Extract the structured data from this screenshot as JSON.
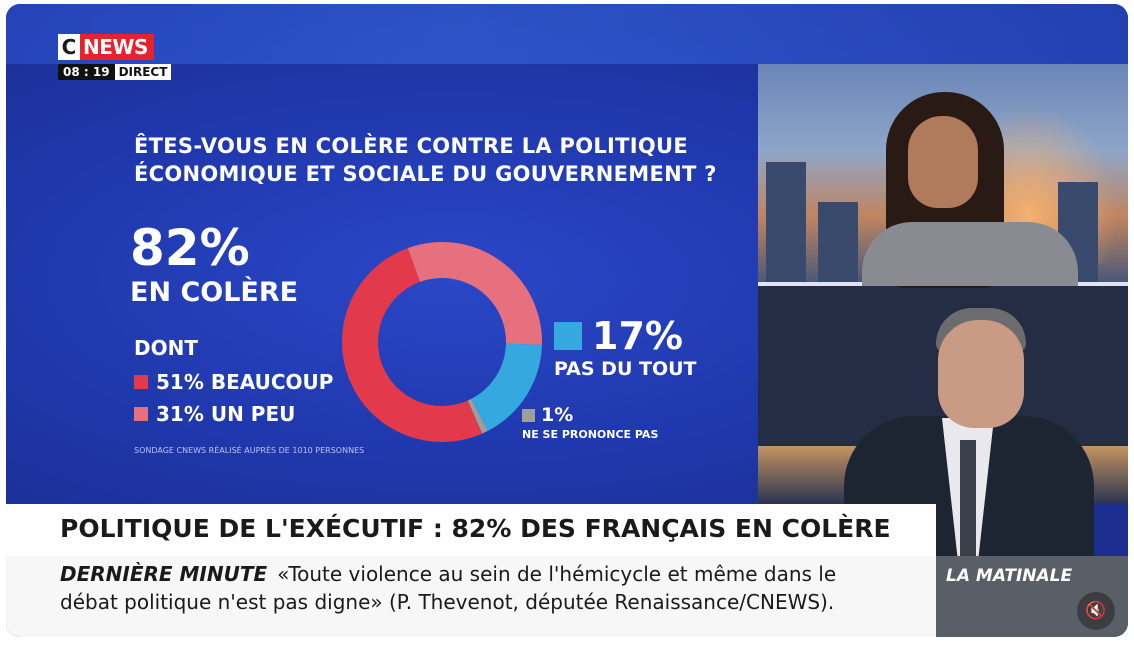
{
  "logo": {
    "c": "C",
    "news": "NEWS"
  },
  "live": {
    "time": "08 : 19",
    "direct": "DIRECT"
  },
  "poll": {
    "question_line1": "ÊTES-VOUS EN COLÈRE CONTRE LA POLITIQUE",
    "question_line2": "ÉCONOMIQUE ET SOCIALE DU GOUVERNEMENT ?",
    "headline_pct": "82%",
    "headline_label": "EN COLÈRE",
    "dont_label": "DONT",
    "source": "SONDAGE CNEWS RÉALISÉ AUPRÈS DE 1010 PERSONNES",
    "slices": [
      {
        "pct_label": "51%",
        "label": "BEAUCOUP",
        "value": 51,
        "color": "#e23a4b"
      },
      {
        "pct_label": "31%",
        "label": "UN PEU",
        "value": 31,
        "color": "#e6707e"
      },
      {
        "pct_label": "17%",
        "label": "PAS DU TOUT",
        "value": 17,
        "color": "#35a8e0"
      },
      {
        "pct_label": "1%",
        "label": "NE SE PRONONCE PAS",
        "value": 1,
        "color": "#9e9e9e"
      }
    ]
  },
  "banner": {
    "headline": "POLITIQUE DE L'EXÉCUTIF : 82% DES FRANÇAIS EN COLÈRE",
    "ticker_label": "DERNIÈRE MINUTE",
    "ticker_line1": "«Toute violence au sein de l'hémicycle et même dans le",
    "ticker_line2": "débat politique n'est pas digne» (P. Thevenot, députée Renaissance/CNEWS).",
    "show_name": "LA MATINALE"
  },
  "controls": {
    "mute_icon": "🔇"
  }
}
